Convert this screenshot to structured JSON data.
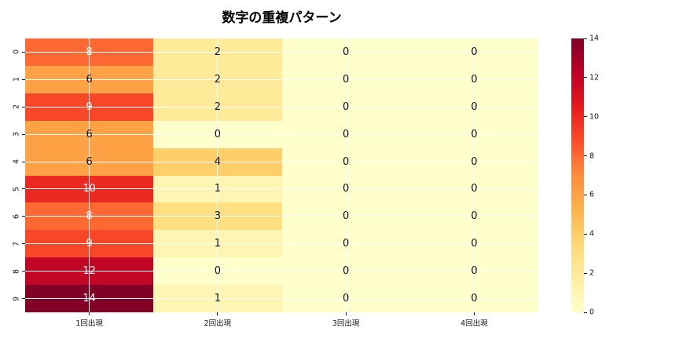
{
  "chart_data": {
    "type": "heatmap",
    "title": "数字の重複パターン",
    "x_labels": [
      "1回出現",
      "2回出現",
      "3回出現",
      "4回出現"
    ],
    "y_labels": [
      "0",
      "1",
      "2",
      "3",
      "4",
      "5",
      "6",
      "7",
      "8",
      "9"
    ],
    "values": [
      [
        8,
        2,
        0,
        0
      ],
      [
        6,
        2,
        0,
        0
      ],
      [
        9,
        2,
        0,
        0
      ],
      [
        6,
        0,
        0,
        0
      ],
      [
        6,
        4,
        0,
        0
      ],
      [
        10,
        1,
        0,
        0
      ],
      [
        8,
        3,
        0,
        0
      ],
      [
        9,
        1,
        0,
        0
      ],
      [
        12,
        0,
        0,
        0
      ],
      [
        14,
        1,
        0,
        0
      ]
    ],
    "vmin": 0,
    "vmax": 14,
    "colormap": "YlOrRd",
    "colormap_stops": [
      "#ffffcc",
      "#ffeda0",
      "#fed976",
      "#feb24c",
      "#fd8d3c",
      "#fc4e2a",
      "#e31a1c",
      "#bd0026",
      "#800026"
    ],
    "colorbar_ticks": [
      0,
      2,
      4,
      6,
      8,
      10,
      12,
      14
    ],
    "legend_position": "right",
    "grid": "on",
    "grid_color": "#ffffff",
    "annotation_dark_color": "#151515",
    "annotation_light_color": "#ffffff",
    "background_color": "#ffffff"
  }
}
